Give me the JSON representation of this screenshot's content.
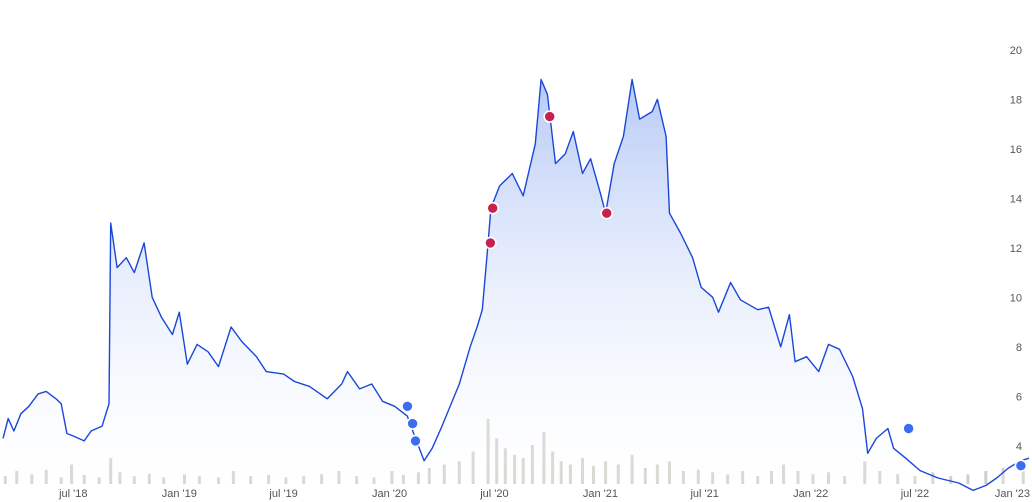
{
  "chart_data": {
    "type": "area",
    "title": "",
    "xlabel": "",
    "ylabel": "",
    "x_range": [
      "2018-03-01",
      "2023-01-15"
    ],
    "ylim": [
      2.5,
      21
    ],
    "x_ticks": [
      {
        "date": "2018-07-01",
        "label": "jul '18"
      },
      {
        "date": "2019-01-01",
        "label": "Jan '19"
      },
      {
        "date": "2019-07-01",
        "label": "jul '19"
      },
      {
        "date": "2020-01-01",
        "label": "Jan '20"
      },
      {
        "date": "2020-07-01",
        "label": "jul '20"
      },
      {
        "date": "2021-01-01",
        "label": "Jan '21"
      },
      {
        "date": "2021-07-01",
        "label": "jul '21"
      },
      {
        "date": "2022-01-01",
        "label": "Jan '22"
      },
      {
        "date": "2022-07-01",
        "label": "jul '22"
      },
      {
        "date": "2023-01-01",
        "label": "Jan '23"
      }
    ],
    "y_ticks": [
      4,
      6,
      8,
      10,
      12,
      14,
      16,
      18,
      20
    ],
    "grid": false,
    "colors": {
      "line": "#1a47d9",
      "fill_top": "#b3c7f5",
      "fill_bottom": "#ffffff",
      "volume": "#cfcfc8",
      "marker_red": "#c8214f",
      "marker_blue": "#3b6df0"
    },
    "series": [
      {
        "values": [
          [
            "2018-03-01",
            4.3
          ],
          [
            "2018-03-10",
            5.1
          ],
          [
            "2018-03-20",
            4.6
          ],
          [
            "2018-04-01",
            5.3
          ],
          [
            "2018-04-15",
            5.6
          ],
          [
            "2018-05-01",
            6.1
          ],
          [
            "2018-05-15",
            6.2
          ],
          [
            "2018-06-01",
            5.9
          ],
          [
            "2018-06-10",
            5.7
          ],
          [
            "2018-06-20",
            4.5
          ],
          [
            "2018-07-01",
            4.4
          ],
          [
            "2018-07-20",
            4.2
          ],
          [
            "2018-08-01",
            4.6
          ],
          [
            "2018-08-20",
            4.8
          ],
          [
            "2018-09-01",
            5.7
          ],
          [
            "2018-09-04",
            13.0
          ],
          [
            "2018-09-15",
            11.2
          ],
          [
            "2018-10-01",
            11.6
          ],
          [
            "2018-10-15",
            11.0
          ],
          [
            "2018-11-01",
            12.2
          ],
          [
            "2018-11-15",
            10.0
          ],
          [
            "2018-12-01",
            9.2
          ],
          [
            "2018-12-20",
            8.5
          ],
          [
            "2019-01-01",
            9.4
          ],
          [
            "2019-01-15",
            7.3
          ],
          [
            "2019-02-01",
            8.1
          ],
          [
            "2019-02-20",
            7.8
          ],
          [
            "2019-03-10",
            7.2
          ],
          [
            "2019-04-01",
            8.8
          ],
          [
            "2019-04-20",
            8.2
          ],
          [
            "2019-05-15",
            7.6
          ],
          [
            "2019-06-01",
            7.0
          ],
          [
            "2019-07-01",
            6.9
          ],
          [
            "2019-07-20",
            6.6
          ],
          [
            "2019-08-15",
            6.4
          ],
          [
            "2019-09-15",
            5.9
          ],
          [
            "2019-10-10",
            6.5
          ],
          [
            "2019-10-20",
            7.0
          ],
          [
            "2019-11-10",
            6.3
          ],
          [
            "2019-12-01",
            6.5
          ],
          [
            "2019-12-20",
            5.8
          ],
          [
            "2020-01-10",
            5.6
          ],
          [
            "2020-02-01",
            5.2
          ],
          [
            "2020-02-15",
            4.3
          ],
          [
            "2020-03-01",
            3.4
          ],
          [
            "2020-03-15",
            3.9
          ],
          [
            "2020-04-01",
            4.8
          ],
          [
            "2020-05-01",
            6.5
          ],
          [
            "2020-05-20",
            8.0
          ],
          [
            "2020-06-01",
            8.8
          ],
          [
            "2020-06-10",
            9.5
          ],
          [
            "2020-06-20",
            12.2
          ],
          [
            "2020-06-25",
            13.6
          ],
          [
            "2020-07-10",
            14.5
          ],
          [
            "2020-08-01",
            15.0
          ],
          [
            "2020-08-20",
            14.1
          ],
          [
            "2020-09-10",
            16.2
          ],
          [
            "2020-09-20",
            18.8
          ],
          [
            "2020-10-01",
            18.2
          ],
          [
            "2020-10-15",
            15.4
          ],
          [
            "2020-11-01",
            15.8
          ],
          [
            "2020-11-15",
            16.7
          ],
          [
            "2020-12-01",
            15.0
          ],
          [
            "2020-12-15",
            15.6
          ],
          [
            "2021-01-01",
            14.2
          ],
          [
            "2021-01-10",
            13.4
          ],
          [
            "2021-01-25",
            15.4
          ],
          [
            "2021-02-10",
            16.5
          ],
          [
            "2021-02-25",
            18.8
          ],
          [
            "2021-03-10",
            17.2
          ],
          [
            "2021-04-01",
            17.5
          ],
          [
            "2021-04-10",
            18.0
          ],
          [
            "2021-04-25",
            16.5
          ],
          [
            "2021-05-01",
            13.4
          ],
          [
            "2021-05-20",
            12.6
          ],
          [
            "2021-06-10",
            11.6
          ],
          [
            "2021-06-25",
            10.4
          ],
          [
            "2021-07-15",
            10.0
          ],
          [
            "2021-07-25",
            9.4
          ],
          [
            "2021-08-15",
            10.6
          ],
          [
            "2021-09-01",
            9.9
          ],
          [
            "2021-10-01",
            9.5
          ],
          [
            "2021-10-20",
            9.6
          ],
          [
            "2021-11-10",
            8.0
          ],
          [
            "2021-11-25",
            9.3
          ],
          [
            "2021-12-05",
            7.4
          ],
          [
            "2021-12-25",
            7.6
          ],
          [
            "2022-01-15",
            7.0
          ],
          [
            "2022-02-01",
            8.1
          ],
          [
            "2022-02-20",
            7.9
          ],
          [
            "2022-03-15",
            6.8
          ],
          [
            "2022-04-01",
            5.5
          ],
          [
            "2022-04-10",
            3.7
          ],
          [
            "2022-04-25",
            4.3
          ],
          [
            "2022-05-15",
            4.7
          ],
          [
            "2022-05-25",
            3.9
          ],
          [
            "2022-06-15",
            3.5
          ],
          [
            "2022-07-10",
            3.0
          ],
          [
            "2022-08-10",
            2.7
          ],
          [
            "2022-09-15",
            2.5
          ],
          [
            "2022-10-10",
            2.2
          ],
          [
            "2022-11-01",
            2.4
          ],
          [
            "2022-11-20",
            2.7
          ],
          [
            "2022-12-10",
            3.1
          ],
          [
            "2023-01-01",
            3.4
          ],
          [
            "2023-01-15",
            3.5
          ]
        ]
      }
    ],
    "volume": {
      "values": [
        [
          "2018-03-05",
          0.12
        ],
        [
          "2018-03-25",
          0.2
        ],
        [
          "2018-04-20",
          0.15
        ],
        [
          "2018-05-15",
          0.22
        ],
        [
          "2018-06-10",
          0.1
        ],
        [
          "2018-06-28",
          0.3
        ],
        [
          "2018-07-20",
          0.14
        ],
        [
          "2018-08-15",
          0.1
        ],
        [
          "2018-09-04",
          0.4
        ],
        [
          "2018-09-20",
          0.18
        ],
        [
          "2018-10-15",
          0.12
        ],
        [
          "2018-11-10",
          0.16
        ],
        [
          "2018-12-05",
          0.1
        ],
        [
          "2019-01-10",
          0.15
        ],
        [
          "2019-02-05",
          0.12
        ],
        [
          "2019-03-10",
          0.1
        ],
        [
          "2019-04-05",
          0.2
        ],
        [
          "2019-05-05",
          0.12
        ],
        [
          "2019-06-05",
          0.14
        ],
        [
          "2019-07-05",
          0.1
        ],
        [
          "2019-08-05",
          0.12
        ],
        [
          "2019-09-05",
          0.15
        ],
        [
          "2019-10-05",
          0.2
        ],
        [
          "2019-11-05",
          0.12
        ],
        [
          "2019-12-05",
          0.1
        ],
        [
          "2020-01-05",
          0.2
        ],
        [
          "2020-01-25",
          0.14
        ],
        [
          "2020-02-20",
          0.18
        ],
        [
          "2020-03-10",
          0.25
        ],
        [
          "2020-04-05",
          0.3
        ],
        [
          "2020-05-01",
          0.35
        ],
        [
          "2020-05-25",
          0.5
        ],
        [
          "2020-06-20",
          1.0
        ],
        [
          "2020-07-05",
          0.7
        ],
        [
          "2020-07-20",
          0.55
        ],
        [
          "2020-08-05",
          0.45
        ],
        [
          "2020-08-20",
          0.4
        ],
        [
          "2020-09-05",
          0.6
        ],
        [
          "2020-09-25",
          0.8
        ],
        [
          "2020-10-10",
          0.5
        ],
        [
          "2020-10-25",
          0.35
        ],
        [
          "2020-11-10",
          0.3
        ],
        [
          "2020-12-01",
          0.4
        ],
        [
          "2020-12-20",
          0.28
        ],
        [
          "2021-01-10",
          0.35
        ],
        [
          "2021-02-01",
          0.3
        ],
        [
          "2021-02-25",
          0.45
        ],
        [
          "2021-03-20",
          0.25
        ],
        [
          "2021-04-10",
          0.3
        ],
        [
          "2021-05-01",
          0.35
        ],
        [
          "2021-05-25",
          0.2
        ],
        [
          "2021-06-20",
          0.22
        ],
        [
          "2021-07-15",
          0.18
        ],
        [
          "2021-08-10",
          0.15
        ],
        [
          "2021-09-05",
          0.2
        ],
        [
          "2021-10-01",
          0.12
        ],
        [
          "2021-10-25",
          0.2
        ],
        [
          "2021-11-15",
          0.3
        ],
        [
          "2021-12-10",
          0.2
        ],
        [
          "2022-01-05",
          0.15
        ],
        [
          "2022-02-01",
          0.18
        ],
        [
          "2022-03-01",
          0.12
        ],
        [
          "2022-04-05",
          0.35
        ],
        [
          "2022-05-01",
          0.2
        ],
        [
          "2022-06-01",
          0.15
        ],
        [
          "2022-07-01",
          0.12
        ],
        [
          "2022-08-01",
          0.18
        ],
        [
          "2022-09-01",
          0.12
        ],
        [
          "2022-10-01",
          0.15
        ],
        [
          "2022-11-01",
          0.2
        ],
        [
          "2022-12-01",
          0.25
        ],
        [
          "2023-01-05",
          0.3
        ]
      ]
    },
    "markers": [
      {
        "date": "2020-06-24",
        "value": 12.2,
        "color": "red"
      },
      {
        "date": "2020-06-28",
        "value": 13.6,
        "color": "red"
      },
      {
        "date": "2020-10-05",
        "value": 17.3,
        "color": "red"
      },
      {
        "date": "2021-01-12",
        "value": 13.4,
        "color": "red"
      },
      {
        "date": "2020-02-01",
        "value": 5.6,
        "color": "blue"
      },
      {
        "date": "2020-02-10",
        "value": 4.9,
        "color": "blue"
      },
      {
        "date": "2020-02-15",
        "value": 4.2,
        "color": "blue"
      },
      {
        "date": "2022-06-20",
        "value": 4.7,
        "color": "blue"
      },
      {
        "date": "2023-01-01",
        "value": 3.2,
        "color": "blue"
      }
    ]
  }
}
